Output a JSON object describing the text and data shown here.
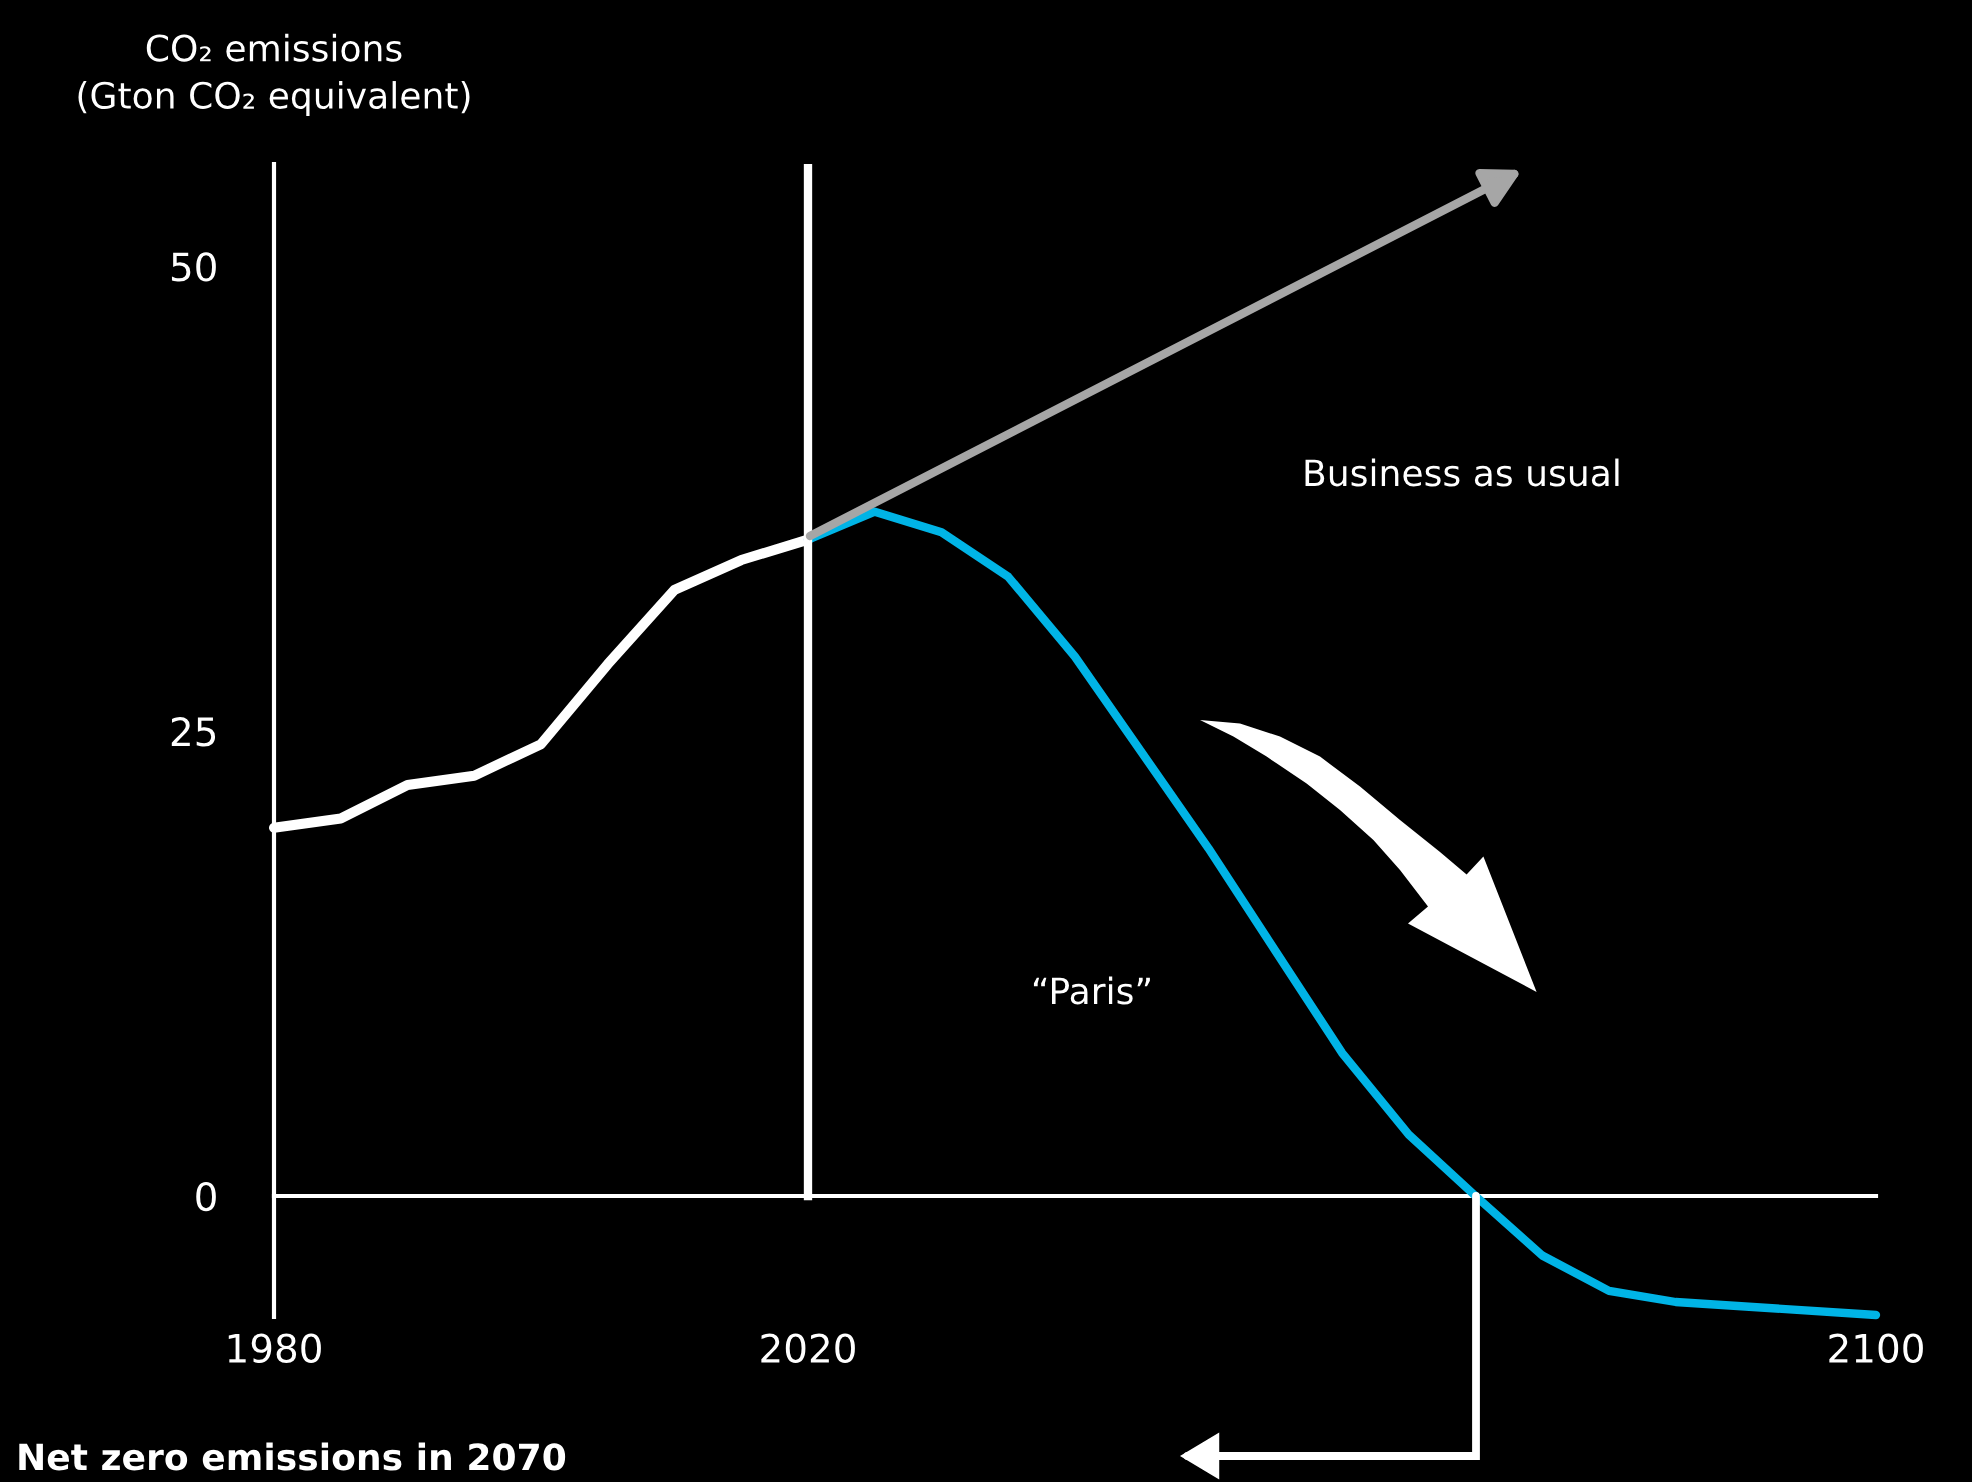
{
  "chart_data": {
    "type": "line",
    "ylabel": "CO₂ emissions\n(Gton CO₂ equivalent)",
    "xlim": [
      1980,
      2100
    ],
    "xticks": [
      1980,
      2020,
      2100
    ],
    "ylim": [
      -6.5,
      55.5
    ],
    "yticks": [
      0,
      25,
      50
    ],
    "grid": false,
    "legend": false,
    "marker": "none",
    "line_style": "solid",
    "series": [
      {
        "color": "#ffffff",
        "x": [
          1980,
          1985,
          1990,
          1995,
          2000,
          2005,
          2010,
          2015,
          2020
        ],
        "values": [
          19.8,
          20.3,
          22.1,
          22.6,
          24.3,
          28.6,
          32.6,
          34.2,
          35.3
        ]
      },
      {
        "color": "#00b4e6",
        "x": [
          2020,
          2025,
          2030,
          2035,
          2040,
          2050,
          2060,
          2065,
          2070,
          2075,
          2080,
          2085,
          2100
        ],
        "values": [
          35.3,
          36.8,
          35.7,
          33.3,
          29.0,
          18.7,
          7.7,
          3.3,
          0,
          -3.2,
          -5.1,
          -5.7,
          -6.4
        ]
      }
    ],
    "ref_lines": [
      {
        "axis": "x",
        "value": 2020,
        "color": "#ffffff"
      }
    ],
    "annotations": [
      "Business as usual",
      "“Paris”",
      "Net zero emissions in 2070"
    ]
  }
}
